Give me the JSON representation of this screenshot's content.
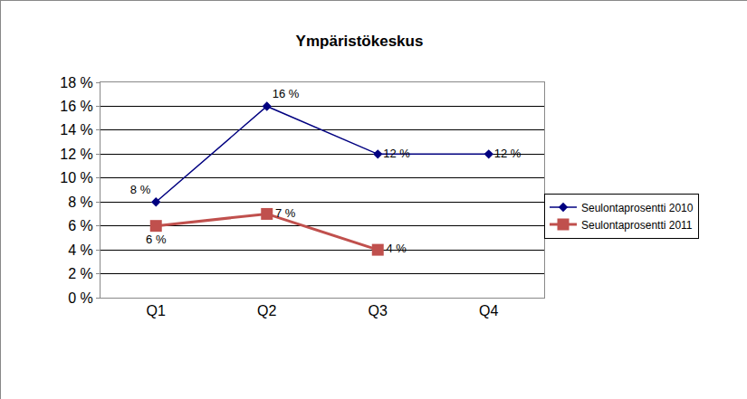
{
  "chart_data": {
    "type": "line",
    "title": "Ympäristökeskus",
    "categories": [
      "Q1",
      "Q2",
      "Q3",
      "Q4"
    ],
    "series": [
      {
        "name": "Seulontaprosentti 2010",
        "color": "#000080",
        "marker": "diamond",
        "line_style": "solid",
        "values": [
          8,
          16,
          12,
          12
        ],
        "value_labels": [
          "8 %",
          "16 %",
          "12 %",
          "12 %"
        ]
      },
      {
        "name": "Seulontaprosentti 2011",
        "color": "#c0504d",
        "marker": "square",
        "line_style": "solid",
        "values": [
          6,
          7,
          4,
          null
        ],
        "value_labels": [
          "6 %",
          "7 %",
          "4 %",
          null
        ]
      }
    ],
    "ylim": [
      0,
      18
    ],
    "yticks": [
      {
        "value": 0,
        "label": "0 %"
      },
      {
        "value": 2,
        "label": "2 %"
      },
      {
        "value": 4,
        "label": "4 %"
      },
      {
        "value": 6,
        "label": "6 %"
      },
      {
        "value": 8,
        "label": "8 %"
      },
      {
        "value": 10,
        "label": "10 %"
      },
      {
        "value": 12,
        "label": "12 %"
      },
      {
        "value": 14,
        "label": "14 %"
      },
      {
        "value": 16,
        "label": "16 %"
      },
      {
        "value": 18,
        "label": "18 %"
      }
    ],
    "grid": true,
    "legend": "right",
    "data_labels": true
  }
}
